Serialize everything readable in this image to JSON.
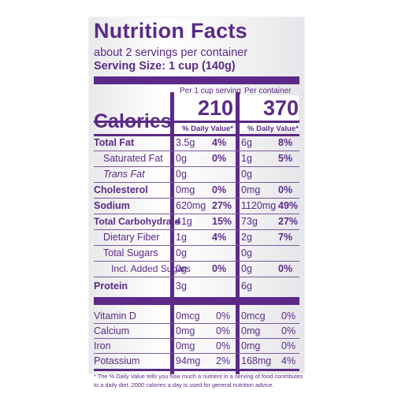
{
  "label": {
    "title": "Nutrition Facts",
    "servings": "about 2 servings per container",
    "serving_size": "Serving Size: 1 cup (140g)",
    "calories_label": "Calories",
    "col1_header": "Per 1 cup serving",
    "col2_header": "Per container",
    "col1_calories": "210",
    "col2_calories": "370",
    "dv_header": "% Daily Value*",
    "rows": [
      {
        "name": "Total Fat",
        "a": "3.5g",
        "ap": "4%",
        "b": "6g",
        "bp": "8%"
      },
      {
        "name": "Saturated Fat",
        "a": "0g",
        "ap": "0%",
        "b": "1g",
        "bp": "5%"
      },
      {
        "name": "Trans Fat",
        "a": "0g",
        "ap": "",
        "b": "0g",
        "bp": ""
      },
      {
        "name": "Cholesterol",
        "a": "0mg",
        "ap": "0%",
        "b": "0mg",
        "bp": "0%"
      },
      {
        "name": "Sodium",
        "a": "620mg",
        "ap": "27%",
        "b": "1120mg",
        "bp": "49%"
      },
      {
        "name": "Total Carbohydrate",
        "a": "41g",
        "ap": "15%",
        "b": "73g",
        "bp": "27%"
      },
      {
        "name": "Dietary Fiber",
        "a": "1g",
        "ap": "4%",
        "b": "2g",
        "bp": "7%"
      },
      {
        "name": "Total Sugars",
        "a": "0g",
        "ap": "",
        "b": "0g",
        "bp": ""
      },
      {
        "name": "Incl. Added Sugars",
        "a": "0g",
        "ap": "0%",
        "b": "0g",
        "bp": "0%"
      },
      {
        "name": "Protein",
        "a": "3g",
        "ap": "",
        "b": "6g",
        "bp": ""
      }
    ],
    "vitamins": [
      {
        "name": "Vitamin D",
        "a": "0mcg",
        "ap": "0%",
        "b": "0mcg",
        "bp": "0%"
      },
      {
        "name": "Calcium",
        "a": "0mg",
        "ap": "0%",
        "b": "0mg",
        "bp": "0%"
      },
      {
        "name": "Iron",
        "a": "0mg",
        "ap": "0%",
        "b": "0mg",
        "bp": "0%"
      },
      {
        "name": "Potassium",
        "a": "94mg",
        "ap": "2%",
        "b": "168mg",
        "bp": "4%"
      }
    ],
    "footnote": "* The % Daily Value tells you how much a nutrient in a serving of food contributes to a daily diet. 2000 calories a day is used for general nutrition advice.",
    "colors": {
      "ink": "#5b2a86",
      "background": "#ffffff"
    }
  }
}
